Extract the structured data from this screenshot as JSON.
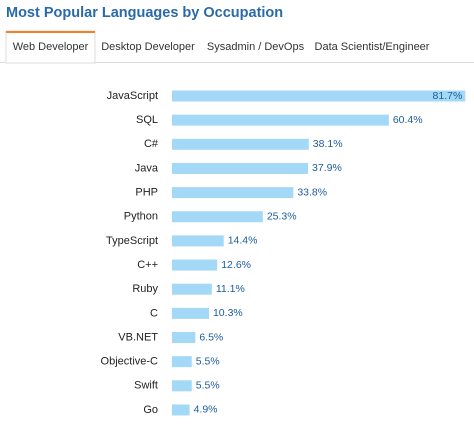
{
  "tabs": [
    "Web Developer",
    "Desktop Developer",
    "Sysadmin / DevOps",
    "Data Scientist/Engineer"
  ],
  "active_tab": 0,
  "chart_data": {
    "type": "bar",
    "orientation": "horizontal",
    "title": "Most Popular Languages by Occupation",
    "categories": [
      "JavaScript",
      "SQL",
      "C#",
      "Java",
      "PHP",
      "Python",
      "TypeScript",
      "C++",
      "Ruby",
      "C",
      "VB.NET",
      "Objective-C",
      "Swift",
      "Go"
    ],
    "values": [
      81.7,
      60.4,
      38.1,
      37.9,
      33.8,
      25.3,
      14.4,
      12.6,
      11.1,
      10.3,
      6.5,
      5.5,
      5.5,
      4.9
    ],
    "value_labels": [
      "81.7%",
      "60.4%",
      "38.1%",
      "37.9%",
      "33.8%",
      "25.3%",
      "14.4%",
      "12.6%",
      "11.1%",
      "10.3%",
      "6.5%",
      "5.5%",
      "5.5%",
      "4.9%"
    ],
    "color": "#a3d8f7"
  }
}
